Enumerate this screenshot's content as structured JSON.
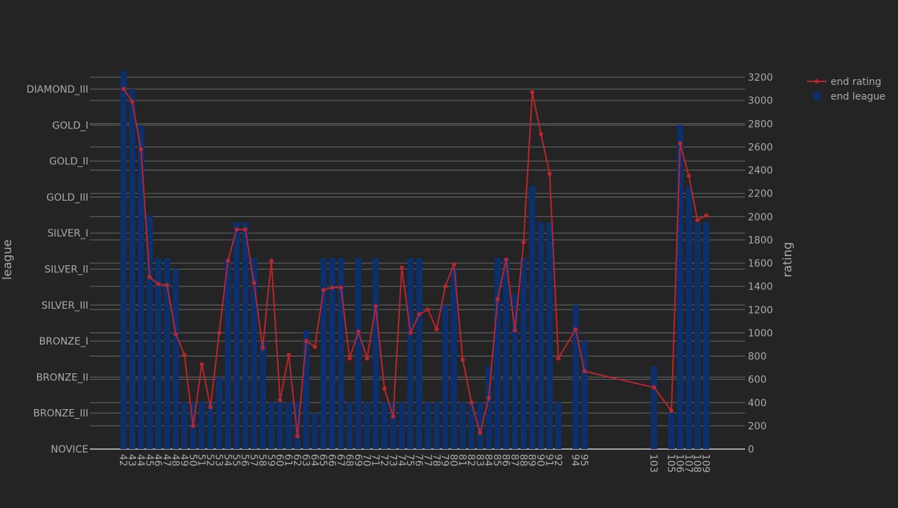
{
  "chart_data": {
    "type": "bar",
    "background": "#242424",
    "grid": true,
    "legend_position": "top-right",
    "x": [
      42,
      43,
      44,
      45,
      46,
      47,
      48,
      49,
      50,
      51,
      52,
      53,
      54,
      55,
      56,
      57,
      58,
      59,
      60,
      61,
      62,
      63,
      64,
      65,
      66,
      67,
      68,
      69,
      70,
      71,
      72,
      73,
      74,
      75,
      76,
      77,
      78,
      79,
      80,
      81,
      82,
      83,
      84,
      85,
      86,
      87,
      88,
      89,
      90,
      91,
      92,
      94,
      95,
      103,
      105,
      106,
      107,
      108,
      109
    ],
    "xlabel": "",
    "y_left_label": "league",
    "y_right_label": "rating",
    "y_left_categories": [
      "NOVICE",
      "BRONZE_III",
      "BRONZE_II",
      "BRONZE_I",
      "SILVER_III",
      "SILVER_II",
      "SILVER_I",
      "GOLD_III",
      "GOLD_II",
      "GOLD_I",
      "DIAMOND_III"
    ],
    "y_right_range": [
      0,
      3200
    ],
    "y_right_ticks": [
      0,
      200,
      400,
      600,
      800,
      1000,
      1200,
      1400,
      1600,
      1800,
      2000,
      2200,
      2400,
      2600,
      2800,
      3000,
      3200
    ],
    "series": [
      {
        "name": "end league",
        "kind": "bar",
        "axis": "left",
        "color": "#0d2f6b",
        "values": [
          10.5,
          10,
          9,
          6.5,
          5.3,
          5.3,
          5,
          1.3,
          1.3,
          1.3,
          1.3,
          2,
          5.3,
          6.3,
          6.3,
          5.3,
          3,
          1.3,
          1.3,
          1.3,
          1.3,
          3.3,
          1,
          5.3,
          5.3,
          5.3,
          1.3,
          5.3,
          1.3,
          5.3,
          1.3,
          1.3,
          1.3,
          5.3,
          5.3,
          1.3,
          1.3,
          4,
          5,
          1.3,
          1.3,
          1.3,
          2.3,
          5.3,
          5.3,
          4.3,
          5.3,
          7.3,
          6.3,
          6.3,
          1.3,
          4,
          3,
          2.3,
          1,
          9,
          7.3,
          6.3,
          6.3
        ]
      },
      {
        "name": "end rating",
        "kind": "line",
        "axis": "right",
        "color": "#b8272d",
        "values": [
          3100,
          2990,
          2580,
          1480,
          1420,
          1410,
          990,
          810,
          200,
          730,
          360,
          1000,
          1620,
          1890,
          1890,
          1430,
          870,
          1620,
          420,
          810,
          110,
          930,
          880,
          1370,
          1390,
          1390,
          780,
          1010,
          780,
          1230,
          520,
          280,
          1560,
          1000,
          1160,
          1200,
          1030,
          1400,
          1590,
          770,
          400,
          140,
          440,
          1290,
          1630,
          1020,
          1780,
          3070,
          2710,
          2370,
          780,
          1030,
          670,
          530,
          330,
          2630,
          2350,
          1970,
          2010
        ]
      }
    ]
  }
}
